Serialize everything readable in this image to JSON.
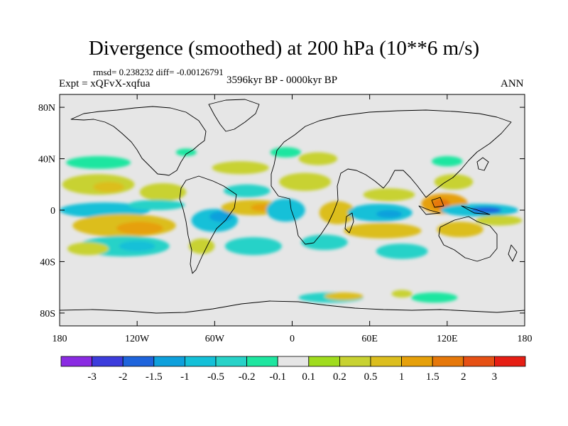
{
  "title": "Divergence (smoothed) at 200 hPa (10**6 m/s)",
  "stats": "rmsd= 0.238232 diff= -0.00126791",
  "experiment": "Expt = xQFvX-xqfua",
  "period": "3596kyr BP - 0000kyr BP",
  "season": "ANN",
  "map": {
    "projection": "cylindrical-equidistant",
    "lon_range": [
      -180,
      180
    ],
    "lat_range": [
      -90,
      90
    ],
    "background_color": "#e6e6e6",
    "coastline_color": "#000000"
  },
  "x_ticks": [
    {
      "lon": -180,
      "label": "180"
    },
    {
      "lon": -120,
      "label": "120W"
    },
    {
      "lon": -60,
      "label": "60W"
    },
    {
      "lon": 0,
      "label": "0"
    },
    {
      "lon": 60,
      "label": "60E"
    },
    {
      "lon": 120,
      "label": "120E"
    },
    {
      "lon": 180,
      "label": "180"
    }
  ],
  "y_ticks": [
    {
      "lat": 80,
      "label": "80N"
    },
    {
      "lat": 40,
      "label": "40N"
    },
    {
      "lat": 0,
      "label": "0"
    },
    {
      "lat": -40,
      "label": "40S"
    },
    {
      "lat": -80,
      "label": "80S"
    }
  ],
  "colorbar": {
    "colors": [
      "#8a2be2",
      "#3c3cdc",
      "#1e64dc",
      "#0ea0dc",
      "#14c0d8",
      "#28d2c8",
      "#1ee6a0",
      "#e6e6e6",
      "#a0dc1e",
      "#c8d232",
      "#dcbe1e",
      "#e6a00a",
      "#e6780a",
      "#e65014",
      "#e61e14"
    ],
    "labels": [
      "-3",
      "-2",
      "-1.5",
      "-1",
      "-0.5",
      "-0.2",
      "-0.1",
      "0.1",
      "0.2",
      "0.5",
      "1",
      "1.5",
      "2",
      "3"
    ]
  },
  "chart_data": {
    "type": "heatmap",
    "title": "Divergence (smoothed) at 200 hPa (10**6 m/s)",
    "variable": "Divergence (smoothed) at 200 hPa",
    "units": "10**6 m/s",
    "contour_levels": [
      -3,
      -2,
      -1.5,
      -1,
      -0.5,
      -0.2,
      -0.1,
      0.1,
      0.2,
      0.5,
      1,
      1.5,
      2,
      3
    ],
    "regions": [
      {
        "name": "N Pacific subtropical positive",
        "lon": -150,
        "lat": 20,
        "rx": 28,
        "ry": 8,
        "value": 0.3
      },
      {
        "name": "N Pacific subtropical positive core",
        "lon": -142,
        "lat": 18,
        "rx": 12,
        "ry": 4,
        "value": 0.6
      },
      {
        "name": "N Pacific mid-lat negative",
        "lon": -150,
        "lat": 37,
        "rx": 25,
        "ry": 5,
        "value": -0.15
      },
      {
        "name": "Equatorial C Pacific negative",
        "lon": -145,
        "lat": 0,
        "rx": 35,
        "ry": 6,
        "value": -0.6
      },
      {
        "name": "Equatorial C Pacific negative core",
        "lon": -150,
        "lat": 1,
        "rx": 15,
        "ry": 3,
        "value": -1.0
      },
      {
        "name": "S Pacific positive band",
        "lon": -130,
        "lat": -12,
        "rx": 40,
        "ry": 9,
        "value": 0.6
      },
      {
        "name": "S Pacific positive core",
        "lon": -118,
        "lat": -14,
        "rx": 18,
        "ry": 5,
        "value": 1.1
      },
      {
        "name": "S Pacific negative",
        "lon": -130,
        "lat": -28,
        "rx": 35,
        "ry": 8,
        "value": -0.5
      },
      {
        "name": "S Pacific negative core",
        "lon": -120,
        "lat": -28,
        "rx": 14,
        "ry": 4,
        "value": -0.8
      },
      {
        "name": "S Pacific positive south",
        "lon": -158,
        "lat": -30,
        "rx": 16,
        "ry": 5,
        "value": 0.3
      },
      {
        "name": "NE Pacific positive",
        "lon": -100,
        "lat": 14,
        "rx": 18,
        "ry": 7,
        "value": 0.3
      },
      {
        "name": "NE Pacific negative",
        "lon": -105,
        "lat": 4,
        "rx": 22,
        "ry": 4,
        "value": -0.3
      },
      {
        "name": "N America negative",
        "lon": -82,
        "lat": 45,
        "rx": 8,
        "ry": 3,
        "value": -0.2
      },
      {
        "name": "Amazon negative",
        "lon": -60,
        "lat": -8,
        "rx": 18,
        "ry": 9,
        "value": -0.7
      },
      {
        "name": "Amazon negative core",
        "lon": -55,
        "lat": -5,
        "rx": 9,
        "ry": 4,
        "value": -1.2
      },
      {
        "name": "S America positive",
        "lon": -70,
        "lat": -28,
        "rx": 10,
        "ry": 6,
        "value": 0.3
      },
      {
        "name": "S Atlantic negative",
        "lon": -30,
        "lat": -28,
        "rx": 22,
        "ry": 7,
        "value": -0.5
      },
      {
        "name": "Equatorial Atlantic positive",
        "lon": -30,
        "lat": 2,
        "rx": 25,
        "ry": 6,
        "value": 0.7
      },
      {
        "name": "Equatorial Atlantic positive core",
        "lon": -22,
        "lat": 2,
        "rx": 10,
        "ry": 3,
        "value": 1.1
      },
      {
        "name": "N Atlantic negative",
        "lon": -35,
        "lat": 15,
        "rx": 18,
        "ry": 5,
        "value": -0.3
      },
      {
        "name": "NW Atlantic positive",
        "lon": -40,
        "lat": 33,
        "rx": 22,
        "ry": 5,
        "value": 0.3
      },
      {
        "name": "Equatorial Africa negative",
        "lon": -5,
        "lat": 0,
        "rx": 15,
        "ry": 9,
        "value": -0.6
      },
      {
        "name": "N Africa positive",
        "lon": 10,
        "lat": 22,
        "rx": 20,
        "ry": 7,
        "value": 0.4
      },
      {
        "name": "Mediterranean positive",
        "lon": 20,
        "lat": 40,
        "rx": 15,
        "ry": 5,
        "value": 0.3
      },
      {
        "name": "Europe negative",
        "lon": -5,
        "lat": 45,
        "rx": 12,
        "ry": 4,
        "value": -0.2
      },
      {
        "name": "E Africa positive",
        "lon": 35,
        "lat": -2,
        "rx": 14,
        "ry": 9,
        "value": 0.8
      },
      {
        "name": "S Africa negative",
        "lon": 25,
        "lat": -25,
        "rx": 18,
        "ry": 6,
        "value": -0.3
      },
      {
        "name": "Indian Ocean negative",
        "lon": 68,
        "lat": -2,
        "rx": 25,
        "ry": 7,
        "value": -0.7
      },
      {
        "name": "Indian Ocean negative core",
        "lon": 75,
        "lat": -3,
        "rx": 10,
        "ry": 3,
        "value": -1.1
      },
      {
        "name": "N Indian Ocean positive",
        "lon": 75,
        "lat": 12,
        "rx": 20,
        "ry": 5,
        "value": 0.3
      },
      {
        "name": "S Indian Ocean positive",
        "lon": 70,
        "lat": -16,
        "rx": 30,
        "ry": 6,
        "value": 0.6
      },
      {
        "name": "Maritime continent positive",
        "lon": 118,
        "lat": 5,
        "rx": 18,
        "ry": 8,
        "value": 1.0
      },
      {
        "name": "Maritime continent core",
        "lon": 115,
        "lat": 5,
        "rx": 7,
        "ry": 4,
        "value": 1.6
      },
      {
        "name": "W Pacific negative",
        "lon": 145,
        "lat": 0,
        "rx": 30,
        "ry": 5,
        "value": -1.0
      },
      {
        "name": "W Pacific negative core",
        "lon": 150,
        "lat": 0,
        "rx": 12,
        "ry": 2.5,
        "value": -1.6
      },
      {
        "name": "E Asia positive",
        "lon": 125,
        "lat": 22,
        "rx": 15,
        "ry": 6,
        "value": 0.3
      },
      {
        "name": "N Asia negative",
        "lon": 120,
        "lat": 38,
        "rx": 12,
        "ry": 4,
        "value": -0.2
      },
      {
        "name": "Australia positive",
        "lon": 130,
        "lat": -15,
        "rx": 18,
        "ry": 6,
        "value": 0.5
      },
      {
        "name": "SW Pacific positive",
        "lon": 160,
        "lat": -8,
        "rx": 18,
        "ry": 4,
        "value": 0.3
      },
      {
        "name": "S Indian Ocean negative",
        "lon": 85,
        "lat": -32,
        "rx": 20,
        "ry": 6,
        "value": -0.3
      },
      {
        "name": "Southern Ocean negative",
        "lon": 30,
        "lat": -68,
        "rx": 25,
        "ry": 4,
        "value": -0.3
      },
      {
        "name": "Southern Ocean positive",
        "lon": 40,
        "lat": -67,
        "rx": 15,
        "ry": 3,
        "value": 0.5
      },
      {
        "name": "Southern Ocean negative east",
        "lon": 110,
        "lat": -68,
        "rx": 18,
        "ry": 4,
        "value": -0.2
      },
      {
        "name": "Southern Ocean positive east",
        "lon": 85,
        "lat": -65,
        "rx": 8,
        "ry": 3,
        "value": 0.3
      }
    ]
  }
}
